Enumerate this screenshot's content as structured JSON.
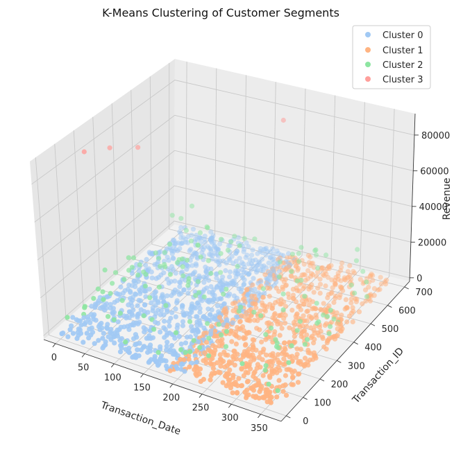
{
  "chart_data": {
    "type": "scatter3d",
    "title": "K-Means Clustering of Customer Segments",
    "xlabel": "Transaction_Date",
    "ylabel": "Transaction_ID",
    "zlabel": "Revenue",
    "xlim": [
      -20,
      385
    ],
    "ylim": [
      -30,
      730
    ],
    "zlim": [
      -2000,
      92000
    ],
    "x_ticks": [
      0,
      50,
      100,
      150,
      200,
      250,
      300,
      350
    ],
    "y_ticks": [
      0,
      100,
      200,
      300,
      400,
      500,
      600,
      700
    ],
    "z_ticks": [
      0,
      20000,
      40000,
      60000,
      80000
    ],
    "grid": true,
    "legend_position": "top-right",
    "series": [
      {
        "name": "Cluster 0",
        "color": "#a1c9f4",
        "x_range": [
          0,
          210
        ],
        "y_range": [
          0,
          700
        ],
        "z_range": [
          200,
          4000
        ],
        "approx_points": 900
      },
      {
        "name": "Cluster 1",
        "color": "#ffb482",
        "x_range": [
          180,
          365
        ],
        "y_range": [
          0,
          700
        ],
        "z_range": [
          200,
          4000
        ],
        "approx_points": 800
      },
      {
        "name": "Cluster 2",
        "color": "#8de5a1",
        "x_range": [
          0,
          365
        ],
        "y_range": [
          0,
          700
        ],
        "z_range": [
          4000,
          20000
        ],
        "approx_points": 150
      },
      {
        "name": "Cluster 3",
        "color": "#ff9f9b",
        "points": [
          [
            10,
            150,
            88000
          ],
          [
            200,
            600,
            87000
          ],
          [
            5,
            300,
            78000
          ],
          [
            20,
            400,
            72000
          ]
        ]
      }
    ]
  }
}
